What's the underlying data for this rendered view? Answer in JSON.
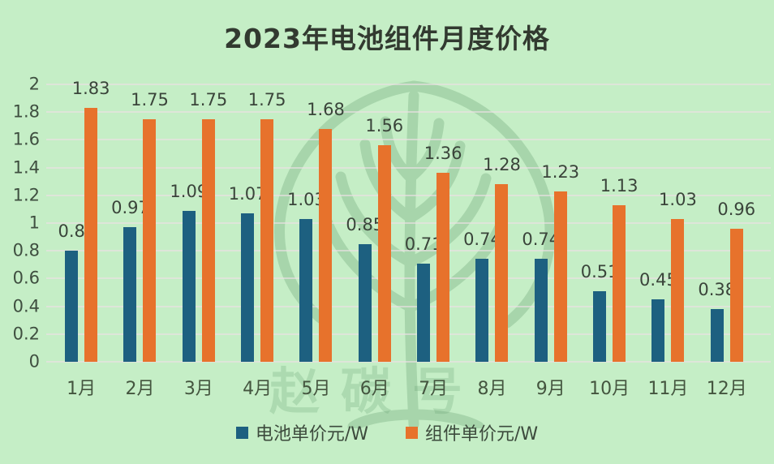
{
  "title": "2023年电池组件月度价格",
  "colors": {
    "background": "#c5eec6",
    "battery_bar": "#1d6080",
    "module_bar": "#e7722c",
    "title_text": "#323a30",
    "axis_text": "#3f4f40",
    "value_text": "#3a443a",
    "gridline": "rgba(235,224,228,0.65)",
    "watermark": "#69a273"
  },
  "watermark": {
    "text": "赵碳号",
    "icon": "tree-watermark-icon"
  },
  "legend": {
    "items": [
      {
        "label": "电池单价元/W",
        "color": "#1d6080"
      },
      {
        "label": "组件单价元/W",
        "color": "#e7722c"
      }
    ]
  },
  "chart_data": {
    "type": "bar",
    "title": "2023年电池组件月度价格",
    "categories": [
      "1月",
      "2月",
      "3月",
      "4月",
      "5月",
      "6月",
      "7月",
      "8月",
      "9月",
      "10月",
      "11月",
      "12月"
    ],
    "series": [
      {
        "name": "电池单价元/W",
        "color": "#1d6080",
        "values": [
          0.8,
          0.97,
          1.09,
          1.07,
          1.03,
          0.85,
          0.71,
          0.74,
          0.74,
          0.51,
          0.45,
          0.38
        ],
        "labels": [
          "0.8",
          "0.97",
          "1.09",
          "1.07",
          "1.03",
          "0.85",
          "0.71",
          "0.74",
          "0.74",
          "0.51",
          "0.45",
          "0.38"
        ]
      },
      {
        "name": "组件单价元/W",
        "color": "#e7722c",
        "values": [
          1.83,
          1.75,
          1.75,
          1.75,
          1.68,
          1.56,
          1.36,
          1.28,
          1.23,
          1.13,
          1.03,
          0.96
        ],
        "labels": [
          "1.83",
          "1.75",
          "1.75",
          "1.75",
          "1.68",
          "1.56",
          "1.36",
          "1.28",
          "1.23",
          "1.13",
          "1.03",
          "0.96"
        ]
      }
    ],
    "xlabel": "",
    "ylabel": "",
    "ylim": [
      0,
      2
    ],
    "yticks": [
      2,
      1.8,
      1.6,
      1.4,
      1.2,
      1,
      0.8,
      0.6,
      0.4,
      0.2,
      0
    ],
    "ytick_labels": [
      "2",
      "1.8",
      "1.6",
      "1.4",
      "1.2",
      "1",
      "0.8",
      "0.6",
      "0.4",
      "0.2",
      "0"
    ],
    "grid": true,
    "legend_position": "bottom",
    "bar_value_labels": true
  }
}
